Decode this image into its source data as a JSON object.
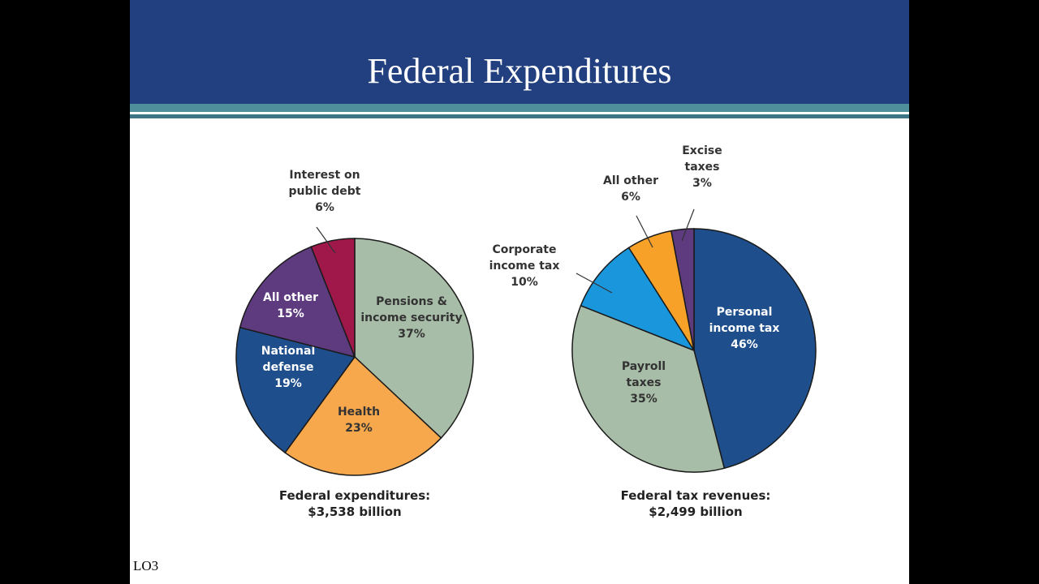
{
  "slide": {
    "title": "Federal Expenditures",
    "footer": "LO3"
  },
  "colors": {
    "header_bg": "#22407f",
    "stripe": "#4e8f9b"
  },
  "chart_data": [
    {
      "type": "pie",
      "caption_line1": "Federal expenditures:",
      "caption_line2": "$3,538 billion",
      "slices": [
        {
          "label": "Pensions & income security",
          "label_lines": [
            "Pensions &",
            "income security"
          ],
          "value": 37,
          "value_label": "37%",
          "color": "#a8bda7",
          "text_color": "#333333"
        },
        {
          "label": "Health",
          "label_lines": [
            "Health"
          ],
          "value": 23,
          "value_label": "23%",
          "color": "#f7a84c",
          "text_color": "#333333"
        },
        {
          "label": "National defense",
          "label_lines": [
            "National",
            "defense"
          ],
          "value": 19,
          "value_label": "19%",
          "color": "#1f4e8c",
          "text_color": "#ffffff"
        },
        {
          "label": "All other",
          "label_lines": [
            "All other"
          ],
          "value": 15,
          "value_label": "15%",
          "color": "#5e3a7f",
          "text_color": "#ffffff"
        },
        {
          "label": "Interest on public debt",
          "label_lines": [
            "Interest on",
            "public debt"
          ],
          "value": 6,
          "value_label": "6%",
          "color": "#a0184a",
          "text_color": "#333333",
          "outside": true
        }
      ]
    },
    {
      "type": "pie",
      "caption_line1": "Federal tax revenues:",
      "caption_line2": "$2,499 billion",
      "slices": [
        {
          "label": "Personal income tax",
          "label_lines": [
            "Personal",
            "income tax"
          ],
          "value": 46,
          "value_label": "46%",
          "color": "#1f4e8c",
          "text_color": "#ffffff"
        },
        {
          "label": "Payroll taxes",
          "label_lines": [
            "Payroll",
            "taxes"
          ],
          "value": 35,
          "value_label": "35%",
          "color": "#a8bda7",
          "text_color": "#333333"
        },
        {
          "label": "Corporate income tax",
          "label_lines": [
            "Corporate",
            "income tax"
          ],
          "value": 10,
          "value_label": "10%",
          "color": "#1a96dc",
          "text_color": "#333333",
          "outside": true
        },
        {
          "label": "All other",
          "label_lines": [
            "All other"
          ],
          "value": 6,
          "value_label": "6%",
          "color": "#f7a128",
          "text_color": "#333333",
          "outside": true
        },
        {
          "label": "Excise taxes",
          "label_lines": [
            "Excise",
            "taxes"
          ],
          "value": 3,
          "value_label": "3%",
          "color": "#5e3a7f",
          "text_color": "#333333",
          "outside": true
        }
      ]
    }
  ]
}
